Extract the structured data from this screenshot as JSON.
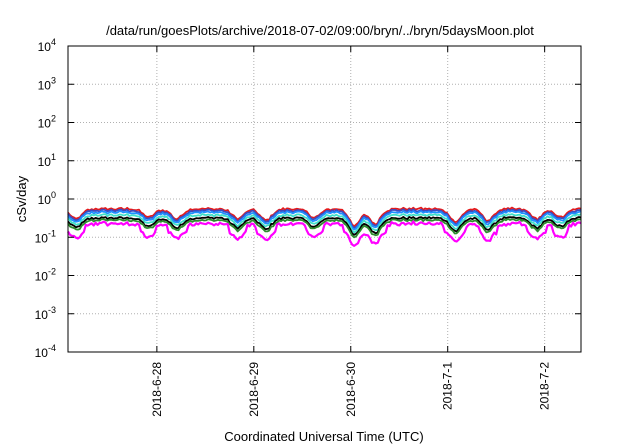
{
  "chart_data": {
    "type": "line",
    "title": "/data/run/goesPlots/archive/2018-07-02/09:00/bryn/../bryn/5daysMoon.plot",
    "xlabel": "Coordinated Universal Time (UTC)",
    "ylabel": "cSv/day",
    "yscale": "log",
    "ylim": [
      0.0001,
      10000
    ],
    "y_ticks": [
      {
        "base": "10",
        "exp": "4",
        "value": 10000
      },
      {
        "base": "10",
        "exp": "3",
        "value": 1000
      },
      {
        "base": "10",
        "exp": "2",
        "value": 100
      },
      {
        "base": "10",
        "exp": "1",
        "value": 10
      },
      {
        "base": "10",
        "exp": "0",
        "value": 1
      },
      {
        "base": "10",
        "exp": "-1",
        "value": 0.1
      },
      {
        "base": "10",
        "exp": "-2",
        "value": 0.01
      },
      {
        "base": "10",
        "exp": "-3",
        "value": 0.001
      },
      {
        "base": "10",
        "exp": "-4",
        "value": 0.0001
      }
    ],
    "xlim": [
      "2018-06-27 02:00",
      "2018-07-02 09:00"
    ],
    "x_ticks": [
      "2018-6-28",
      "2018-6-29",
      "2018-6-30",
      "2018-7-1",
      "2018-7-2"
    ],
    "grid": true,
    "colors": {
      "red": "#e41a1c",
      "blue": "#3b4cc0",
      "steelblue": "#1e90ff",
      "aqua": "#3fe0c8",
      "black": "#000000",
      "green": "#2e8b2e",
      "magenta": "#ff00ff"
    },
    "series": [
      {
        "color": "red",
        "baseline": 0.55
      },
      {
        "color": "blue",
        "baseline": 0.5
      },
      {
        "color": "steelblue",
        "baseline": 0.45
      },
      {
        "color": "aqua",
        "baseline": 0.38
      },
      {
        "color": "black",
        "baseline": 0.32
      },
      {
        "color": "green",
        "baseline": 0.28
      },
      {
        "color": "magenta",
        "baseline": 0.24
      }
    ],
    "dips": [
      {
        "t": "2018-06-27 04:00",
        "factor": 0.55
      },
      {
        "t": "2018-06-27 22:00",
        "factor": 0.6
      },
      {
        "t": "2018-06-28 05:00",
        "factor": 0.55
      },
      {
        "t": "2018-06-28 20:00",
        "factor": 0.55
      },
      {
        "t": "2018-06-29 03:00",
        "factor": 0.5
      },
      {
        "t": "2018-06-29 15:00",
        "factor": 0.6
      },
      {
        "t": "2018-06-30 01:00",
        "factor": 0.35
      },
      {
        "t": "2018-06-30 06:00",
        "factor": 0.4
      },
      {
        "t": "2018-07-01 02:00",
        "factor": 0.45
      },
      {
        "t": "2018-07-01 10:00",
        "factor": 0.5
      },
      {
        "t": "2018-07-01 22:00",
        "factor": 0.55
      },
      {
        "t": "2018-07-02 04:00",
        "factor": 0.6
      }
    ]
  }
}
